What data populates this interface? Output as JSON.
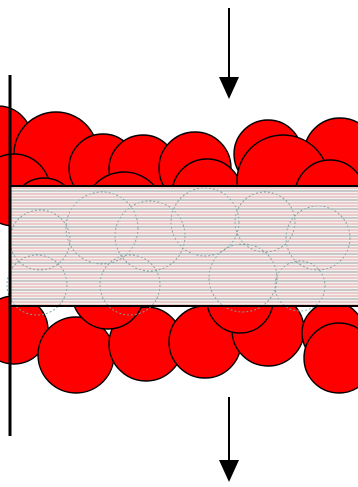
{
  "colors": {
    "background": "#ffffff",
    "particle_fill": "#ff0000",
    "particle_stroke": "#000000",
    "band_fill": "#f2f2f2",
    "band_line_light": "#e7a3a3",
    "band_line_dark": "#4a4a4a",
    "band_edge": "#000000",
    "wall": "#000000",
    "arrow": "#000000",
    "hidden_outline": "#7ba6a6"
  },
  "elements": {
    "arrow_top_direction": "down",
    "arrow_bottom_direction": "down",
    "particle_count_top_row": 13,
    "particle_count_bottom_row": 9
  }
}
